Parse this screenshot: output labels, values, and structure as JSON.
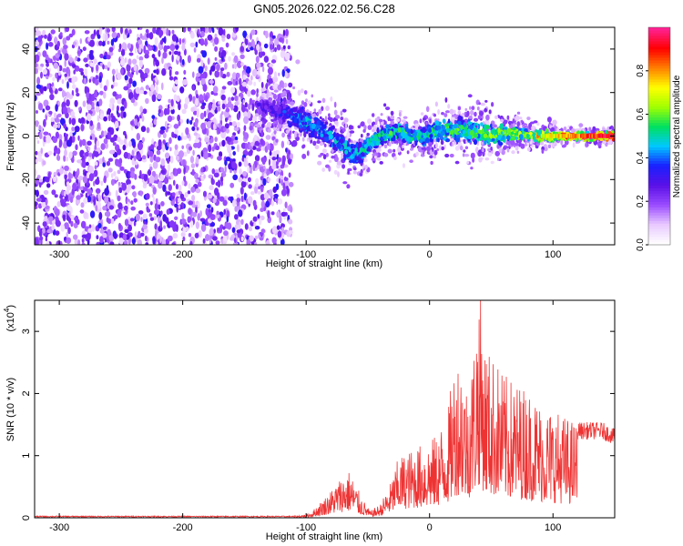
{
  "title": "GN05.2026.022.02.56.C28",
  "chart_data": [
    {
      "type": "heatmap",
      "title": "GN05.2026.022.02.56.C28",
      "xlabel": "Height of straight line (km)",
      "ylabel": "Frequency (Hz)",
      "xlim": [
        -320,
        150
      ],
      "ylim": [
        -50,
        50
      ],
      "xticks": [
        -300,
        -200,
        -100,
        0,
        100
      ],
      "yticks": [
        -40,
        -20,
        0,
        20,
        40
      ],
      "colorbar": {
        "label": "Normalized spectral amplitude",
        "range": [
          0.0,
          1.0
        ],
        "ticks": [
          0.0,
          0.2,
          0.4,
          0.6,
          0.8
        ],
        "tick_labels": [
          "0.0",
          "0.2",
          "0.4",
          "0.6",
          "0.8"
        ],
        "colors": [
          "#ffffff",
          "#e8c8ff",
          "#9a4bff",
          "#5a10e6",
          "#1a20ff",
          "#00c8ff",
          "#00e060",
          "#a0ff00",
          "#ffff00",
          "#ff8000",
          "#ff0000",
          "#ff2090"
        ]
      },
      "noise_region": {
        "x_range": [
          -320,
          -112
        ],
        "freq_range": [
          -50,
          50
        ],
        "level": 0.2
      },
      "signal_track": {
        "x": [
          -140,
          -125,
          -110,
          -100,
          -90,
          -80,
          -70,
          -62,
          -55,
          -45,
          -35,
          -25,
          -15,
          -5,
          5,
          15,
          25,
          35,
          45,
          55,
          65,
          75,
          85,
          95,
          105,
          115,
          125,
          135,
          150
        ],
        "freq": [
          14,
          12,
          9,
          6,
          3,
          0,
          -4,
          -9,
          -7,
          -2,
          1,
          2,
          0,
          0,
          2,
          3,
          3,
          2,
          1,
          1,
          1,
          1,
          0,
          0,
          0,
          0,
          0,
          0,
          0
        ],
        "spread": [
          4,
          5,
          6,
          7,
          7,
          7,
          7,
          6,
          6,
          5,
          5,
          5,
          5,
          5,
          5,
          6,
          6,
          6,
          6,
          5,
          4,
          3,
          3,
          3,
          2,
          2,
          2,
          2,
          2
        ],
        "amplitude": [
          0.25,
          0.3,
          0.4,
          0.45,
          0.4,
          0.42,
          0.45,
          0.45,
          0.45,
          0.5,
          0.5,
          0.52,
          0.5,
          0.5,
          0.52,
          0.55,
          0.55,
          0.55,
          0.58,
          0.6,
          0.62,
          0.65,
          0.68,
          0.72,
          0.78,
          0.85,
          0.9,
          0.95,
          1.0
        ]
      }
    },
    {
      "type": "line",
      "xlabel": "Height of straight line (km)",
      "ylabel": "SNR (10 * v/v)",
      "scale_note": "(x10",
      "scale_exp": "4",
      "xlim": [
        -320,
        150
      ],
      "ylim": [
        0,
        3.5
      ],
      "xticks": [
        -300,
        -200,
        -100,
        0,
        100
      ],
      "yticks": [
        0,
        1,
        2,
        3
      ],
      "ytick_labels": [
        "0",
        "1",
        "2",
        "3"
      ],
      "series": [
        {
          "name": "SNR",
          "color": "#ee3333",
          "envelope_x": [
            -320,
            -150,
            -110,
            -100,
            -95,
            -85,
            -78,
            -72,
            -65,
            -55,
            -48,
            -40,
            -32,
            -25,
            -15,
            -5,
            5,
            15,
            20,
            25,
            30,
            35,
            40,
            45,
            50,
            55,
            60,
            70,
            80,
            90,
            100,
            110,
            120,
            130,
            140,
            150
          ],
          "envelope_y": [
            0.02,
            0.02,
            0.03,
            0.05,
            0.1,
            0.3,
            0.45,
            0.6,
            0.7,
            0.3,
            0.1,
            0.2,
            0.5,
            0.9,
            1.0,
            1.1,
            1.2,
            1.6,
            2.3,
            2.5,
            2.0,
            2.4,
            3.5,
            2.6,
            2.4,
            2.3,
            2.1,
            2.0,
            1.9,
            1.7,
            1.6,
            1.5,
            1.4,
            1.4,
            1.4,
            1.3
          ]
        }
      ]
    }
  ]
}
